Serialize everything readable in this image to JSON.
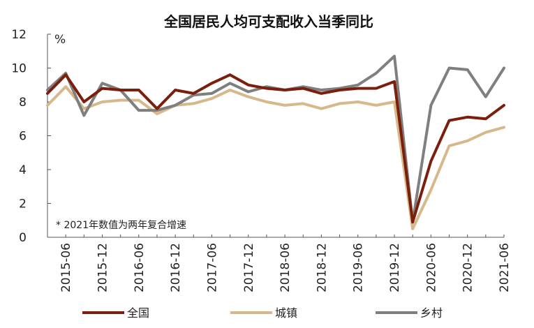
{
  "chart_data": {
    "type": "line",
    "title": "全国居民人均可支配收入当季同比",
    "unit": "%",
    "note": "* 2021年数值为两年复合增速",
    "ylim": [
      0,
      12
    ],
    "yticks": [
      0,
      2,
      4,
      6,
      8,
      10,
      12
    ],
    "x": [
      "2015-03",
      "2015-06",
      "2015-09",
      "2015-12",
      "2016-03",
      "2016-06",
      "2016-09",
      "2016-12",
      "2017-03",
      "2017-06",
      "2017-09",
      "2017-12",
      "2018-03",
      "2018-06",
      "2018-09",
      "2018-12",
      "2019-03",
      "2019-06",
      "2019-09",
      "2019-12",
      "2020-03",
      "2020-06",
      "2020-09",
      "2020-12",
      "2021-03",
      "2021-06"
    ],
    "xtick_labels": [
      "2015-06",
      "2015-12",
      "2016-06",
      "2016-12",
      "2017-06",
      "2017-12",
      "2018-06",
      "2018-12",
      "2019-06",
      "2019-12",
      "2020-06",
      "2020-12",
      "2021-06"
    ],
    "grid": false,
    "legend_position": "bottom",
    "series": [
      {
        "name": "全国",
        "color": "#7b1f0c",
        "values": [
          8.5,
          9.6,
          8.0,
          8.8,
          8.7,
          8.7,
          7.6,
          8.7,
          8.5,
          9.1,
          9.6,
          9.0,
          8.8,
          8.7,
          8.8,
          8.5,
          8.7,
          8.8,
          8.8,
          9.2,
          0.9,
          4.5,
          6.9,
          7.1,
          7.0,
          7.8
        ]
      },
      {
        "name": "城镇",
        "color": "#d6b88a",
        "values": [
          7.8,
          8.9,
          7.6,
          8.0,
          8.1,
          8.1,
          7.3,
          7.8,
          7.9,
          8.2,
          8.7,
          8.3,
          8.0,
          7.8,
          7.9,
          7.6,
          7.9,
          8.0,
          7.8,
          8.0,
          0.5,
          2.8,
          5.4,
          5.7,
          6.2,
          6.5
        ]
      },
      {
        "name": "乡村",
        "color": "#7f7f7f",
        "values": [
          8.7,
          9.7,
          7.2,
          9.1,
          8.7,
          7.5,
          7.5,
          7.8,
          8.4,
          8.5,
          9.1,
          8.6,
          8.9,
          8.7,
          8.9,
          8.7,
          8.8,
          9.0,
          9.7,
          10.7,
          0.9,
          7.8,
          10.0,
          9.9,
          8.3,
          10.0
        ]
      }
    ]
  }
}
